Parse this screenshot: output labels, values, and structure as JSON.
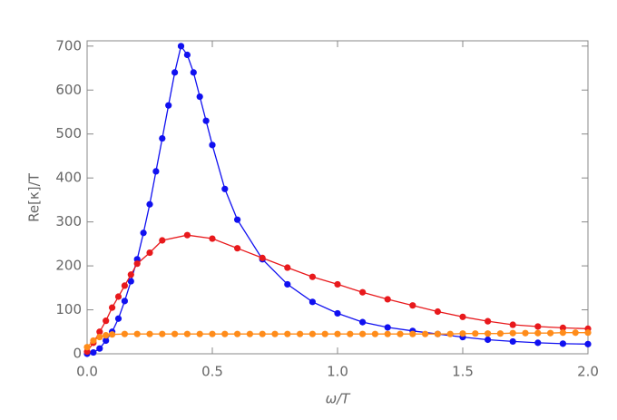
{
  "chart_data": {
    "type": "scatter-line",
    "xlabel": "ω/T",
    "ylabel": "Re[κ]/T",
    "xlim": [
      0,
      2
    ],
    "ylim": [
      0,
      712
    ],
    "xticks": [
      {
        "value": 0,
        "label": "0.0"
      },
      {
        "value": 0.5,
        "label": "0.5"
      },
      {
        "value": 1,
        "label": "1.0"
      },
      {
        "value": 1.5,
        "label": "1.5"
      },
      {
        "value": 2,
        "label": "2.0"
      }
    ],
    "yticks": [
      0,
      100,
      200,
      300,
      400,
      500,
      600,
      700
    ],
    "series": [
      {
        "color": "#1010f0",
        "x": [
          0,
          0.025,
          0.05,
          0.075,
          0.1,
          0.125,
          0.15,
          0.175,
          0.2,
          0.225,
          0.25,
          0.275,
          0.3,
          0.325,
          0.35,
          0.375,
          0.4,
          0.425,
          0.45,
          0.475,
          0.5,
          0.55,
          0.6,
          0.7,
          0.8,
          0.9,
          1.0,
          1.1,
          1.2,
          1.3,
          1.4,
          1.5,
          1.6,
          1.7,
          1.8,
          1.9,
          2.0
        ],
        "values": [
          0,
          3,
          12,
          30,
          50,
          80,
          120,
          165,
          215,
          275,
          340,
          415,
          490,
          565,
          640,
          700,
          680,
          640,
          585,
          530,
          475,
          375,
          305,
          215,
          158,
          118,
          92,
          72,
          60,
          52,
          45,
          38,
          32,
          28,
          25,
          23,
          22
        ]
      },
      {
        "color": "#e8191c",
        "x": [
          0,
          0.025,
          0.05,
          0.075,
          0.1,
          0.125,
          0.15,
          0.175,
          0.2,
          0.25,
          0.3,
          0.4,
          0.5,
          0.6,
          0.7,
          0.8,
          0.9,
          1.0,
          1.1,
          1.2,
          1.3,
          1.4,
          1.5,
          1.6,
          1.7,
          1.8,
          1.9,
          2.0
        ],
        "values": [
          5,
          25,
          50,
          75,
          105,
          130,
          155,
          180,
          205,
          230,
          258,
          270,
          262,
          240,
          218,
          196,
          175,
          158,
          140,
          124,
          110,
          96,
          84,
          74,
          66,
          62,
          59,
          57
        ]
      },
      {
        "color": "#ff8c1a",
        "x": [
          0,
          0.025,
          0.05,
          0.075,
          0.1,
          0.15,
          0.2,
          0.25,
          0.3,
          0.35,
          0.4,
          0.45,
          0.5,
          0.55,
          0.6,
          0.65,
          0.7,
          0.75,
          0.8,
          0.85,
          0.9,
          0.95,
          1.0,
          1.05,
          1.1,
          1.15,
          1.2,
          1.25,
          1.3,
          1.35,
          1.4,
          1.45,
          1.5,
          1.55,
          1.6,
          1.65,
          1.7,
          1.75,
          1.8,
          1.85,
          1.9,
          1.95,
          2.0
        ],
        "values": [
          15,
          30,
          38,
          42,
          44,
          45,
          45,
          45,
          45,
          45,
          45,
          45,
          45,
          45,
          45,
          45,
          45,
          45,
          45,
          45,
          45,
          45,
          45,
          45,
          45,
          45,
          45,
          45,
          45,
          45,
          45,
          45,
          46,
          46,
          46,
          46,
          47,
          47,
          47,
          47,
          48,
          48,
          48
        ]
      }
    ]
  }
}
